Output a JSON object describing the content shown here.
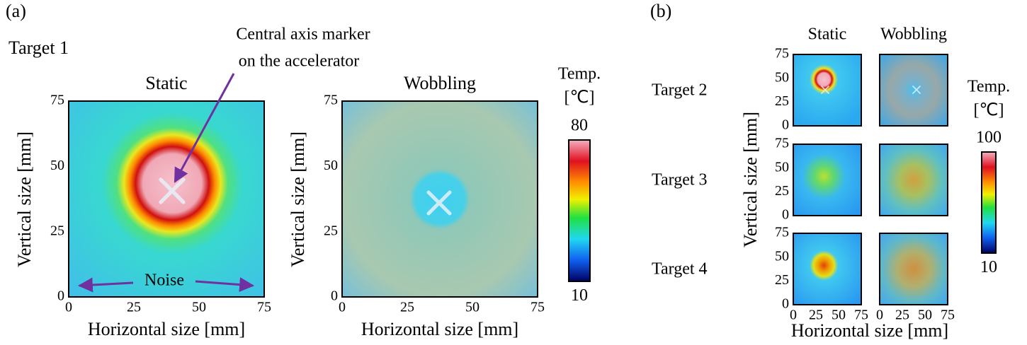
{
  "panel_a": {
    "label": "(a)",
    "row_label": "Target 1",
    "annotation_lines": [
      "Central axis marker",
      "on the accelerator"
    ],
    "noise_label": "Noise",
    "titles": [
      "Static",
      "Wobbling"
    ],
    "ticks": [
      0,
      25,
      50,
      75
    ],
    "x_label": "Horizontal size [mm]",
    "y_label": "Vertical size [mm]",
    "colorbar": {
      "title_lines": [
        "Temp.",
        "[℃]"
      ],
      "max": 80,
      "min": 10
    }
  },
  "panel_b": {
    "label": "(b)",
    "columns": [
      "Static",
      "Wobbling"
    ],
    "rows": [
      "Target 2",
      "Target 3",
      "Target 4"
    ],
    "ticks": [
      0,
      25,
      50,
      75
    ],
    "x_label": "Horizontal size [mm]",
    "y_label": "Vertical size [mm]",
    "colorbar": {
      "title_lines": [
        "Temp.",
        "[℃]"
      ],
      "max": 100,
      "min": 10
    }
  }
}
